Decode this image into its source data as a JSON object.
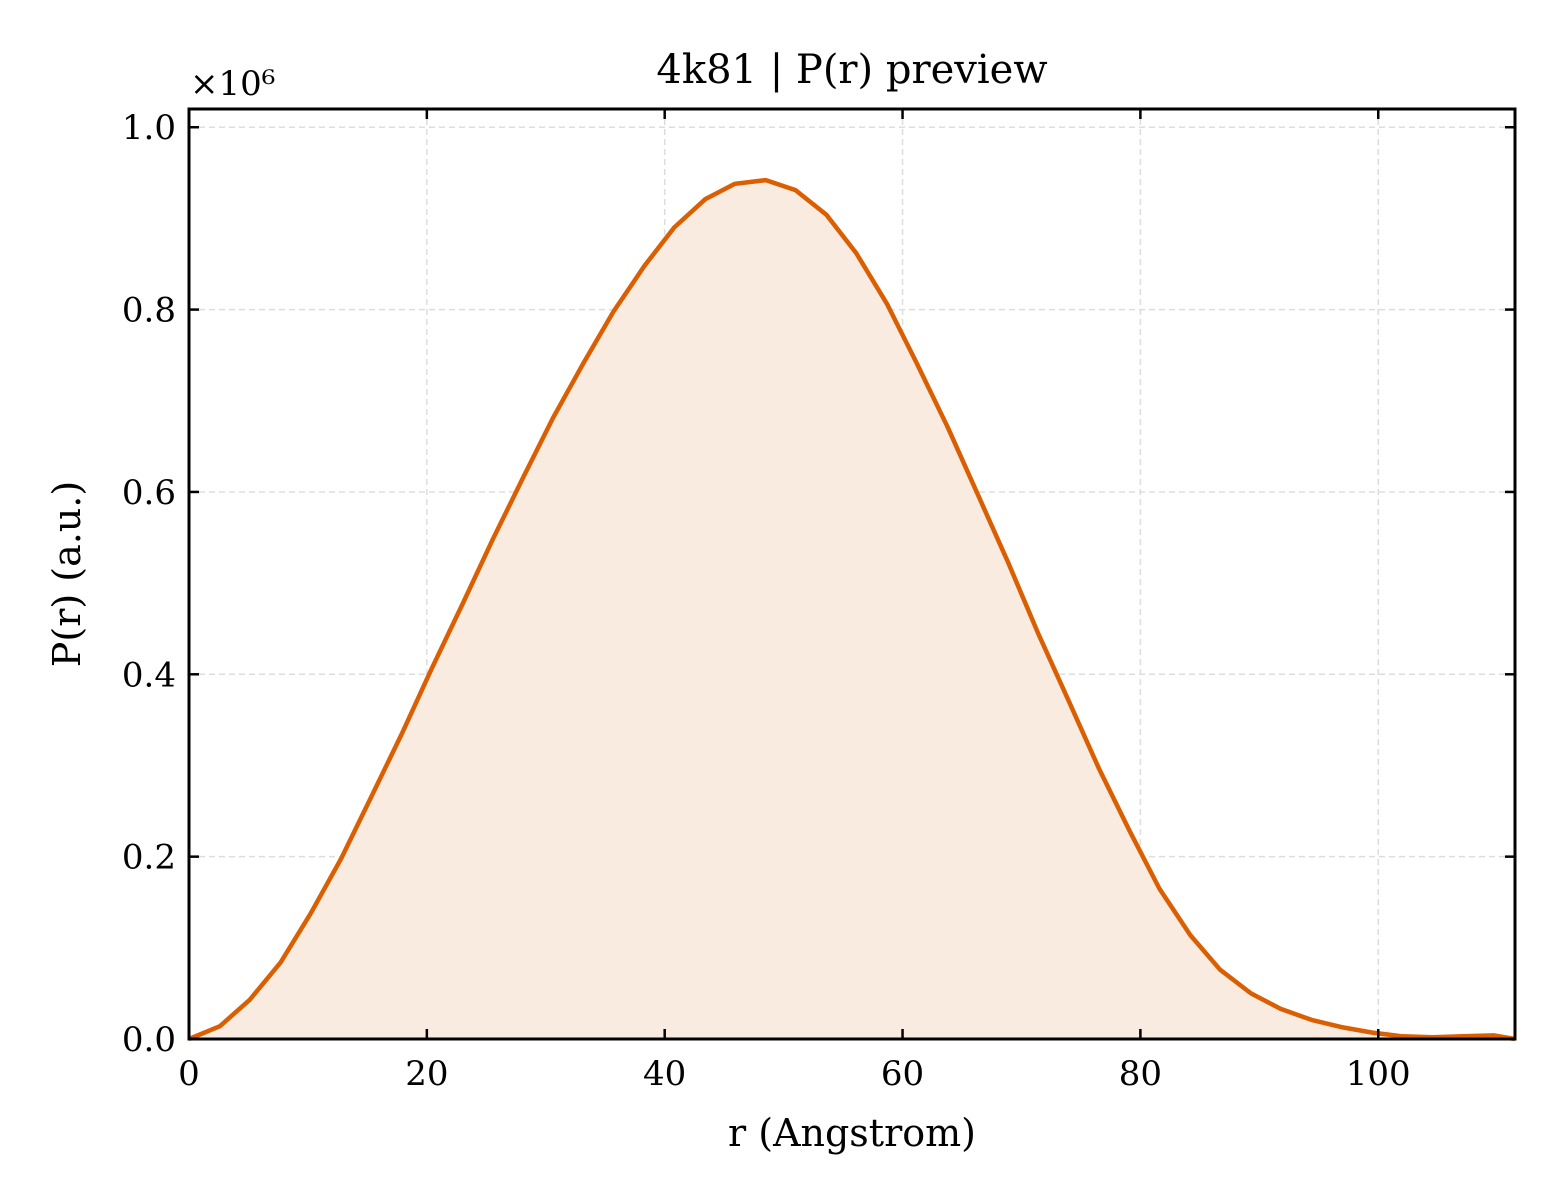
{
  "chart_data": {
    "type": "area",
    "title": "4k81 | P(r) preview",
    "xlabel": "r (Angstrom)",
    "ylabel": "P(r) (a.u.)",
    "y_multiplier": "×10⁶",
    "xlim": [
      0,
      111.5
    ],
    "ylim": [
      0,
      1.02
    ],
    "xticks": [
      0,
      20,
      40,
      60,
      80,
      100
    ],
    "yticks": [
      0.0,
      0.2,
      0.4,
      0.6,
      0.8,
      1.0
    ],
    "xtick_labels": [
      "0",
      "20",
      "40",
      "60",
      "80",
      "100"
    ],
    "ytick_labels": [
      "0.0",
      "0.2",
      "0.4",
      "0.6",
      "0.8",
      "1.0"
    ],
    "grid": true,
    "colors": {
      "line": "#d95f02",
      "fill": "#f9ebe0"
    },
    "series": [
      {
        "x": [
          0.0,
          2.6,
          5.1,
          7.7,
          10.2,
          12.8,
          15.3,
          17.9,
          20.4,
          23.0,
          25.5,
          28.1,
          30.6,
          33.2,
          35.7,
          38.3,
          40.8,
          43.4,
          45.9,
          48.5,
          51.0,
          53.6,
          56.1,
          58.7,
          61.2,
          63.8,
          66.3,
          68.9,
          71.4,
          74.0,
          76.5,
          79.1,
          81.6,
          84.2,
          86.7,
          89.3,
          91.8,
          94.4,
          96.9,
          99.5,
          102.0,
          104.6,
          107.1,
          109.7,
          111.5
        ],
        "y": [
          0.0,
          0.014,
          0.043,
          0.084,
          0.137,
          0.198,
          0.265,
          0.335,
          0.406,
          0.477,
          0.547,
          0.616,
          0.681,
          0.742,
          0.798,
          0.848,
          0.89,
          0.921,
          0.938,
          0.942,
          0.931,
          0.904,
          0.862,
          0.806,
          0.741,
          0.671,
          0.598,
          0.522,
          0.445,
          0.37,
          0.297,
          0.228,
          0.165,
          0.114,
          0.076,
          0.05,
          0.033,
          0.021,
          0.013,
          0.007,
          0.003,
          0.002,
          0.003,
          0.004,
          0.0
        ]
      }
    ]
  }
}
